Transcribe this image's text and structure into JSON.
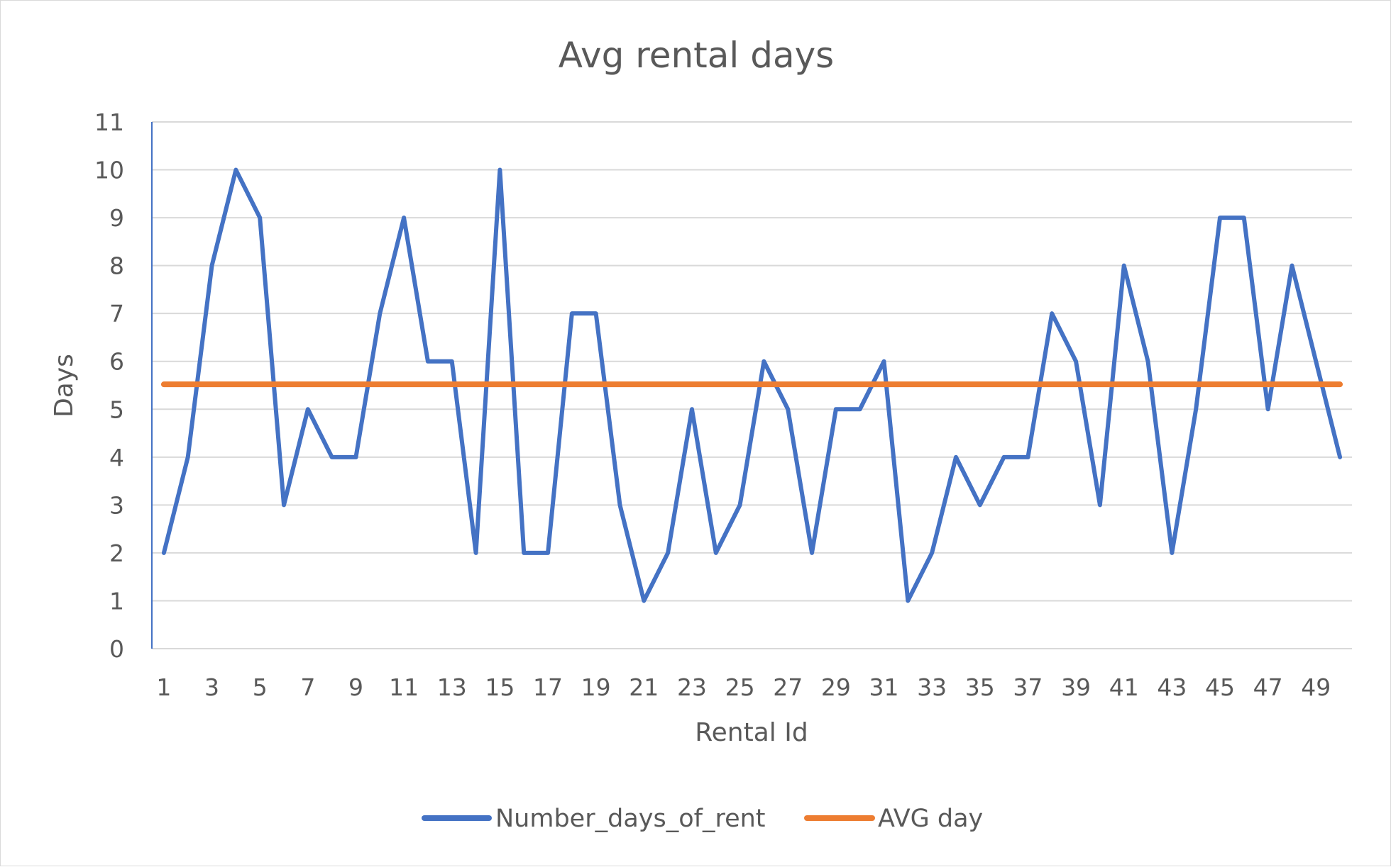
{
  "chart_data": {
    "type": "line",
    "title": "Avg rental days",
    "xlabel": "Rental Id",
    "ylabel": "Days",
    "x": [
      1,
      2,
      3,
      4,
      5,
      6,
      7,
      8,
      9,
      10,
      11,
      12,
      13,
      14,
      15,
      16,
      17,
      18,
      19,
      20,
      21,
      22,
      23,
      24,
      25,
      26,
      27,
      28,
      29,
      30,
      31,
      32,
      33,
      34,
      35,
      36,
      37,
      38,
      39,
      40,
      41,
      42,
      43,
      44,
      45,
      46,
      47,
      48,
      49,
      50
    ],
    "x_tick_labels": [
      "1",
      "3",
      "5",
      "7",
      "9",
      "11",
      "13",
      "15",
      "17",
      "19",
      "21",
      "23",
      "25",
      "27",
      "29",
      "31",
      "33",
      "35",
      "37",
      "39",
      "41",
      "43",
      "45",
      "47",
      "49"
    ],
    "y_tick_labels": [
      "0",
      "1",
      "2",
      "3",
      "4",
      "5",
      "6",
      "7",
      "8",
      "9",
      "10",
      "11"
    ],
    "ylim": [
      0,
      11
    ],
    "grid": "horizontal",
    "legend_position": "bottom",
    "series": [
      {
        "name": "Number_days_of_rent",
        "color": "#4472c4",
        "values": [
          2,
          4,
          8,
          10,
          9,
          3,
          5,
          4,
          4,
          7,
          9,
          6,
          6,
          2,
          10,
          2,
          2,
          7,
          7,
          3,
          1,
          2,
          5,
          2,
          3,
          6,
          5,
          2,
          5,
          5,
          6,
          1,
          2,
          4,
          3,
          4,
          4,
          7,
          6,
          3,
          8,
          6,
          2,
          5,
          9,
          9,
          5,
          8,
          6,
          4
        ]
      },
      {
        "name": "AVG day",
        "color": "#ed7d31",
        "values": [
          5.52,
          5.52,
          5.52,
          5.52,
          5.52,
          5.52,
          5.52,
          5.52,
          5.52,
          5.52,
          5.52,
          5.52,
          5.52,
          5.52,
          5.52,
          5.52,
          5.52,
          5.52,
          5.52,
          5.52,
          5.52,
          5.52,
          5.52,
          5.52,
          5.52,
          5.52,
          5.52,
          5.52,
          5.52,
          5.52,
          5.52,
          5.52,
          5.52,
          5.52,
          5.52,
          5.52,
          5.52,
          5.52,
          5.52,
          5.52,
          5.52,
          5.52,
          5.52,
          5.52,
          5.52,
          5.52,
          5.52,
          5.52,
          5.52,
          5.52
        ]
      }
    ]
  }
}
